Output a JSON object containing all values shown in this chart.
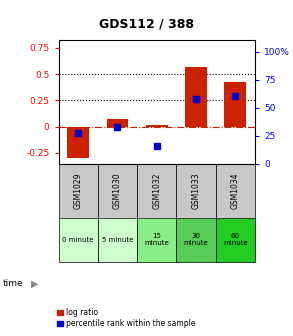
{
  "title": "GDS112 / 388",
  "samples": [
    "GSM1029",
    "GSM1030",
    "GSM1032",
    "GSM1033",
    "GSM1034"
  ],
  "time_labels": [
    "0 minute",
    "5 minute",
    "15\nminute",
    "30\nminute",
    "60\nminute"
  ],
  "time_colors": [
    "#ccffcc",
    "#ccffcc",
    "#88ee88",
    "#55cc55",
    "#22cc22"
  ],
  "log_ratio": [
    -0.3,
    0.07,
    0.02,
    0.57,
    0.42
  ],
  "percentile_rank": [
    27,
    33,
    16,
    58,
    60
  ],
  "bar_color": "#cc2200",
  "dot_color": "#0000cc",
  "ylim_left": [
    -0.35,
    0.82
  ],
  "ylim_right": [
    0,
    110
  ],
  "yticks_left": [
    -0.25,
    0.0,
    0.25,
    0.5,
    0.75
  ],
  "yticks_right": [
    0,
    25,
    50,
    75,
    100
  ],
  "hline_y": [
    0.25,
    0.5
  ],
  "background_color": "#ffffff",
  "legend_log_label": "log ratio",
  "legend_pct_label": "percentile rank within the sample"
}
